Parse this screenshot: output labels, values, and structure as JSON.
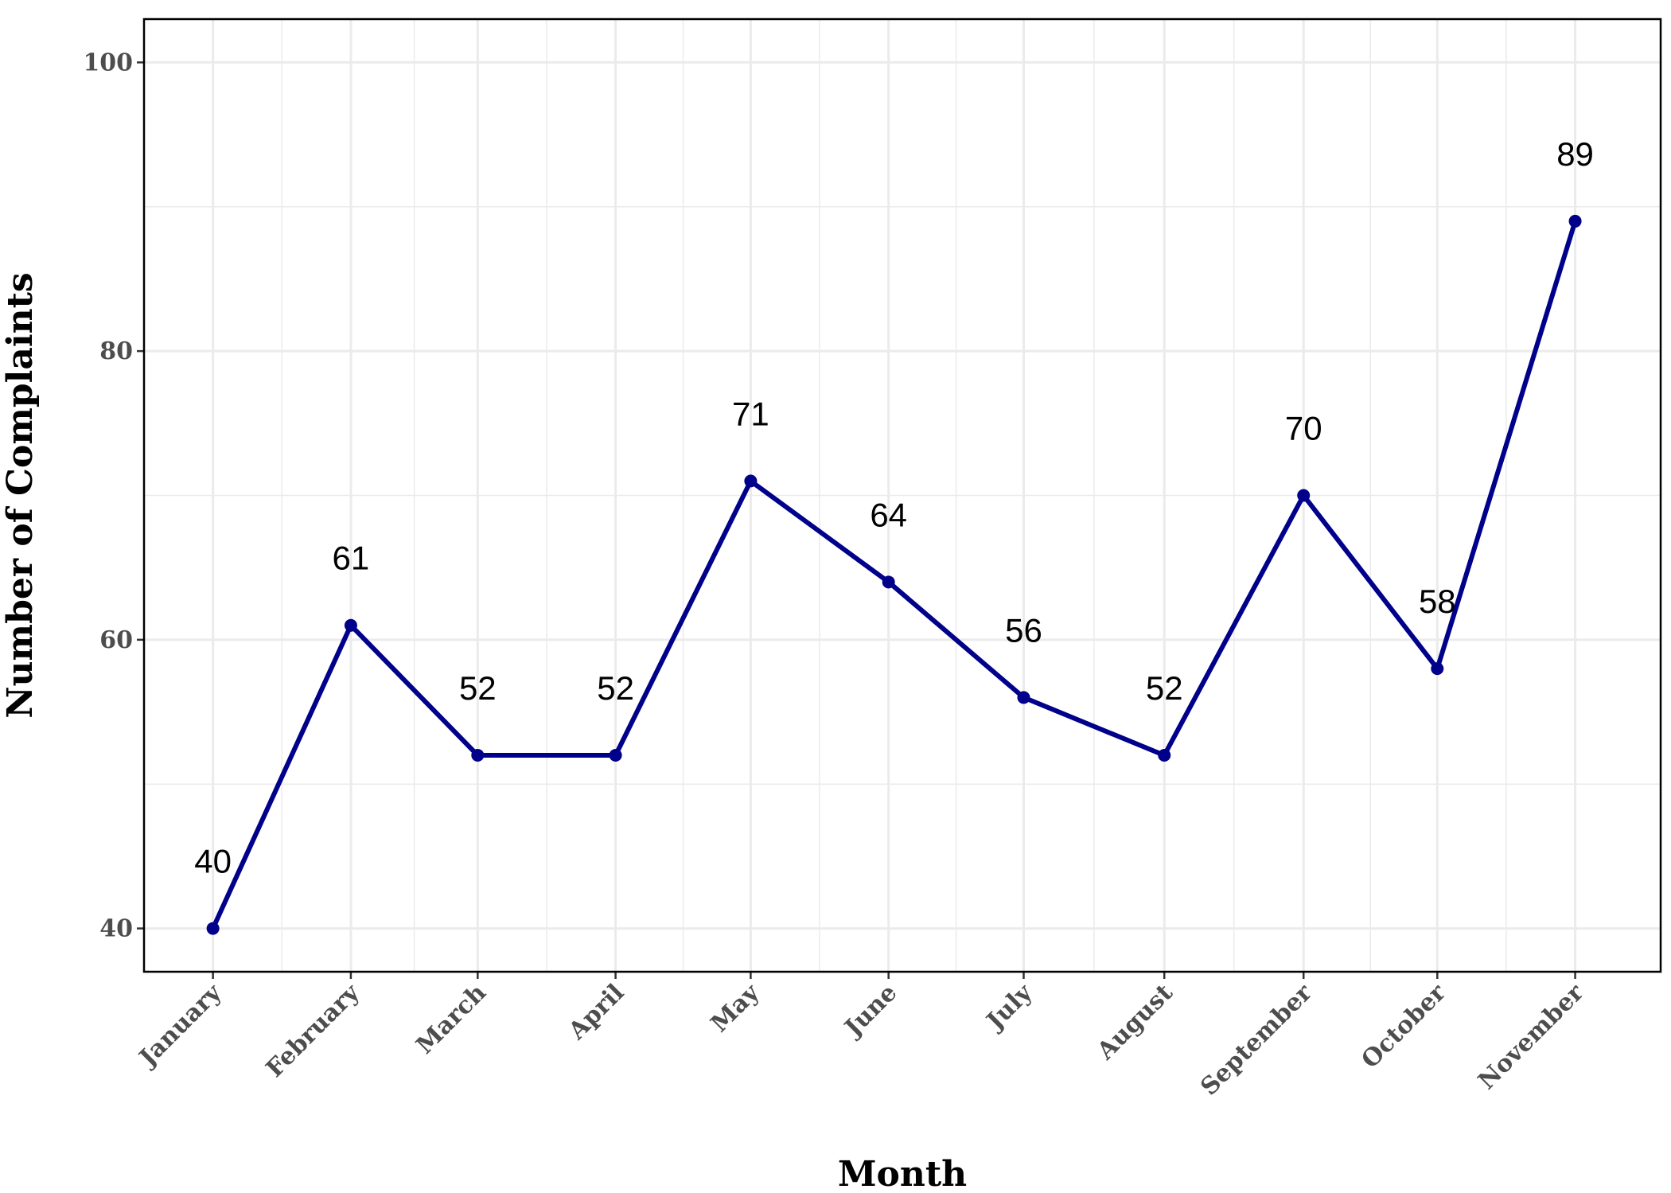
{
  "chart_data": {
    "type": "line",
    "title": "",
    "xlabel": "Month",
    "ylabel": "Number of Complaints",
    "categories": [
      "January",
      "February",
      "March",
      "April",
      "May",
      "June",
      "July",
      "August",
      "September",
      "October",
      "November"
    ],
    "x_positions": [
      1,
      2,
      2.92,
      3.92,
      4.9,
      5.9,
      6.88,
      7.9,
      8.91,
      9.88,
      10.88
    ],
    "x_range": [
      0.5,
      11.5
    ],
    "series": [
      {
        "values": [
          40,
          61,
          52,
          52,
          71,
          64,
          56,
          52,
          70,
          58,
          89
        ]
      }
    ],
    "data_labels": [
      "40",
      "61",
      "52",
      "52",
      "71",
      "64",
      "56",
      "52",
      "70",
      "58",
      "89"
    ],
    "ylim": [
      37,
      103
    ],
    "yticks": [
      40,
      60,
      80,
      100
    ],
    "ytick_labels": [
      "40",
      "60",
      "80",
      "100"
    ],
    "grid": true,
    "legend": "none",
    "colors": {
      "line": "#00008b",
      "grid": "#ebebeb",
      "panel_border": "#000000"
    }
  }
}
